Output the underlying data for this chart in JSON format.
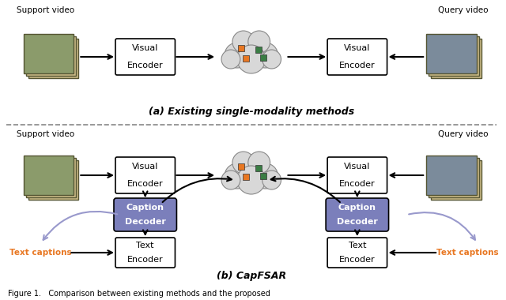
{
  "bg_color": "#ffffff",
  "text_color": "#000000",
  "orange_color": "#E87722",
  "blue_box_color": "#7B7FBB",
  "arrow_color": "#000000",
  "light_blue_arrow": "#9999CC",
  "dashed_line_color": "#888888",
  "green_color": "#3a7d44",
  "cloud_color": "#d8d8d8",
  "cloud_edge_color": "#888888",
  "subtitle_a": "(a) Existing single-modality methods",
  "subtitle_b": "(b) CapFSAR",
  "label_support": "Support video",
  "label_query": "Query video",
  "label_visual_enc": [
    "Visual",
    "Encoder"
  ],
  "label_caption_dec": [
    "Caption",
    "Decoder"
  ],
  "label_text_enc": [
    "Text",
    "Encoder"
  ],
  "label_text_captions": "Text captions",
  "figure_caption": "Figure 1.   Comparison between existing methods and the proposed"
}
